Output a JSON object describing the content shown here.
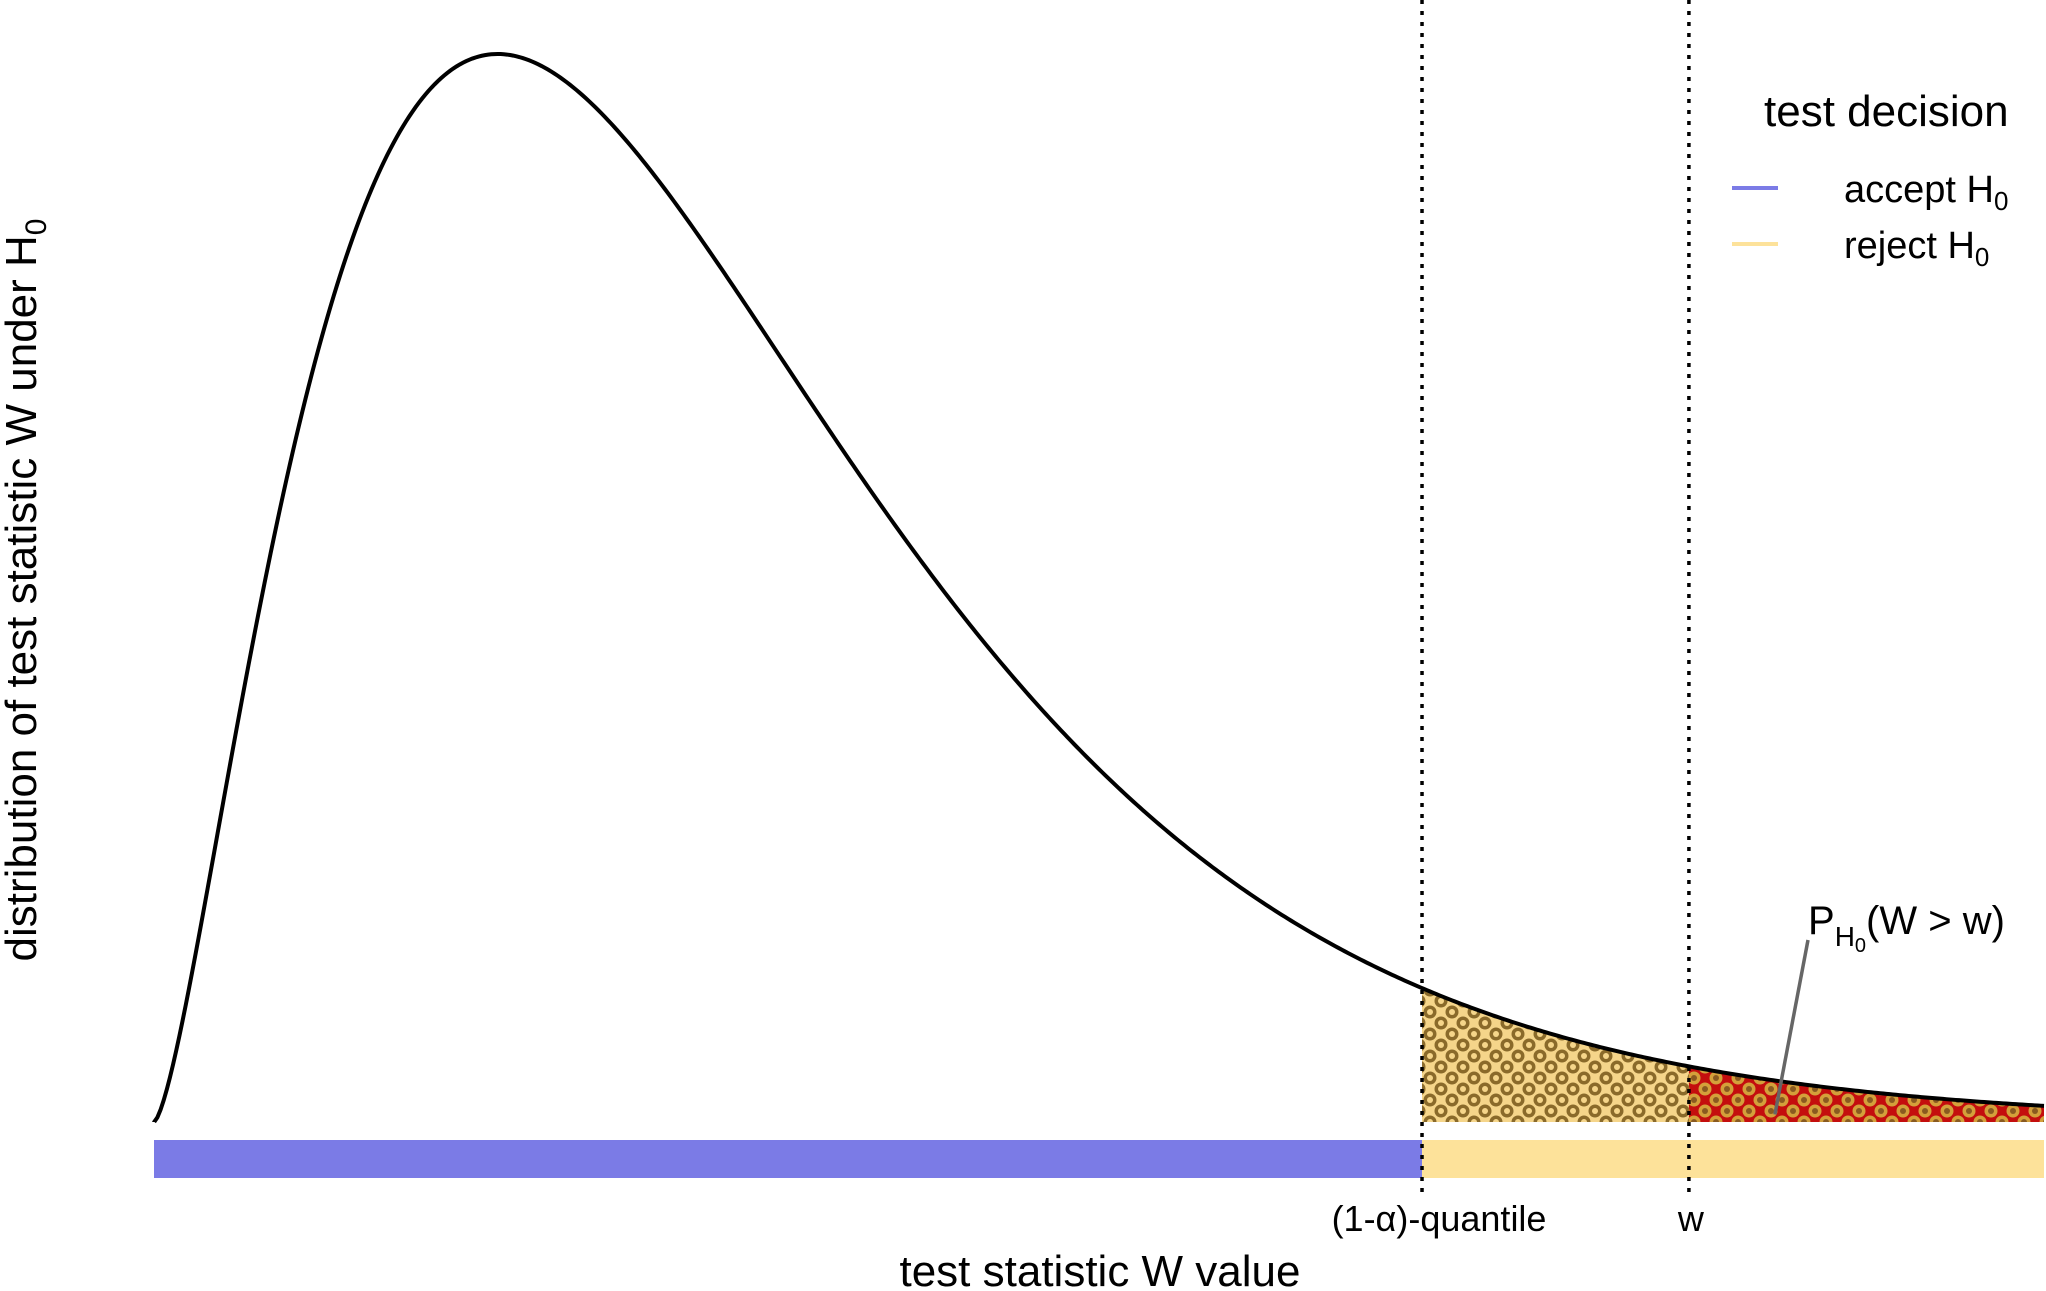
{
  "chart_data": {
    "type": "area",
    "distribution": "chi-squared density under H0",
    "xlabel": "test statistic W value",
    "ylabel_main": "distribution of test statistic W under H",
    "ylabel_sub": "0",
    "x_ticks": [
      {
        "label": "(1-α)-quantile",
        "value": 11.07
      },
      {
        "label": "w",
        "value": 13.4
      }
    ],
    "xlim": [
      0,
      16.5
    ],
    "density": {
      "df": 5
    },
    "critical_value": 11.07,
    "observed_w": 13.4,
    "decision_bar": [
      {
        "decision": "accept",
        "from": 0,
        "to": 11.07,
        "color": "#7b7be6"
      },
      {
        "decision": "reject",
        "from": 11.07,
        "to": 16.5,
        "color": "#fde29a"
      }
    ],
    "shaded_regions": [
      {
        "name": "rejection region",
        "from": 11.07,
        "to": 16.5,
        "fill": "#f5d58a",
        "dot": "#8a6a2a"
      },
      {
        "name": "p-value",
        "from": 13.4,
        "to": 16.5,
        "fill": "#c40e0e",
        "dot": "#d4a03a"
      }
    ],
    "annotation": {
      "p": "P",
      "h": "H",
      "zero": "0",
      "rest": "(W > w)"
    },
    "legend": {
      "title": "test decision",
      "position": "top-right",
      "items": [
        {
          "label": "accept H",
          "sub": "0",
          "color": "#7b7be6"
        },
        {
          "label": "reject H",
          "sub": "0",
          "color": "#fde29a"
        }
      ]
    },
    "grid": false
  }
}
